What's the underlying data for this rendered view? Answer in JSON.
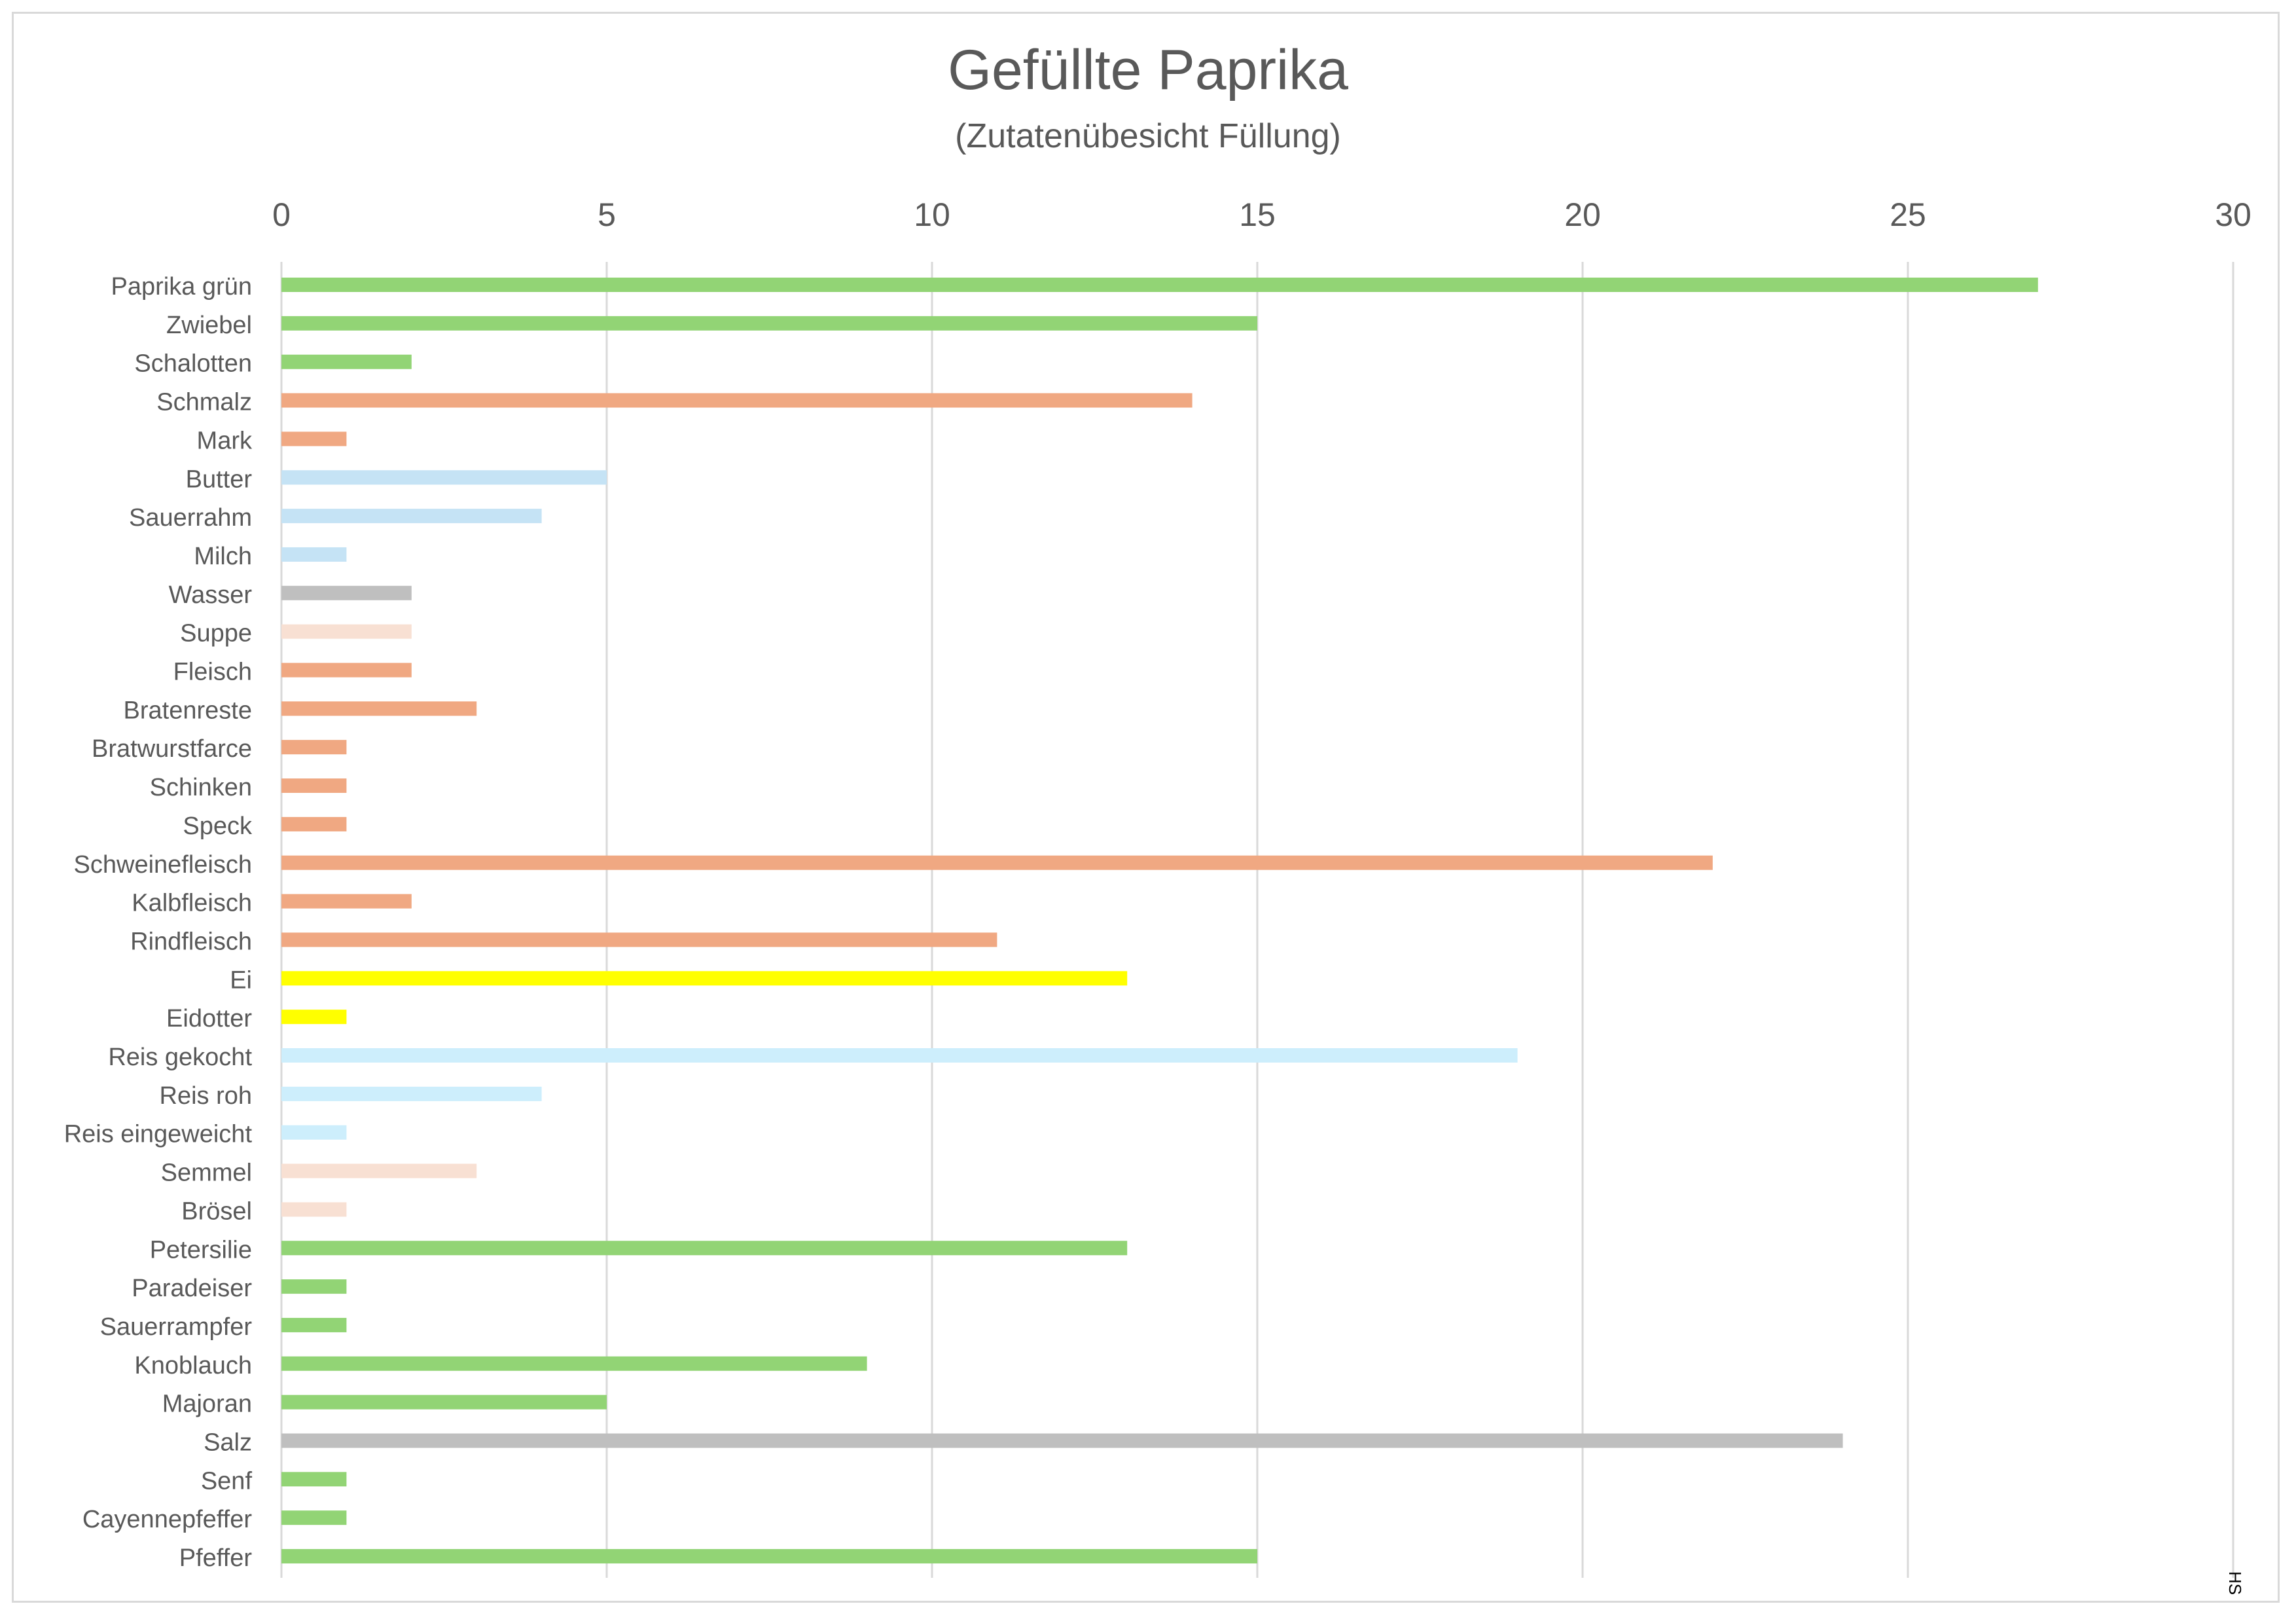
{
  "chart_data": {
    "type": "bar",
    "orientation": "horizontal",
    "title": "Gefüllte Paprika",
    "subtitle": "(Zutatenübesicht Füllung)",
    "xlim": [
      0,
      30
    ],
    "x_ticks": [
      0,
      5,
      10,
      15,
      20,
      25,
      30
    ],
    "x_axis_position": "top",
    "grid": true,
    "legend": "none",
    "categories": [
      "Paprika grün",
      "Zwiebel",
      "Schalotten",
      "Schmalz",
      "Mark",
      "Butter",
      "Sauerrahm",
      "Milch",
      "Wasser",
      "Suppe",
      "Fleisch",
      "Bratenreste",
      "Bratwurstfarce",
      "Schinken",
      "Speck",
      "Schweinefleisch",
      "Kalbfleisch",
      "Rindfleisch",
      "Ei",
      "Eidotter",
      "Reis gekocht",
      "Reis roh",
      "Reis eingeweicht",
      "Semmel",
      "Brösel",
      "Petersilie",
      "Paradeiser",
      "Sauerrampfer",
      "Knoblauch",
      "Majoran",
      "Salz",
      "Senf",
      "Cayennepfeffer",
      "Pfeffer"
    ],
    "values": [
      27,
      15,
      2,
      14,
      1,
      5,
      4,
      1,
      2,
      2,
      2,
      3,
      1,
      1,
      1,
      22,
      2,
      11,
      13,
      1,
      19,
      4,
      1,
      3,
      1,
      13,
      1,
      1,
      9,
      5,
      24,
      1,
      1,
      15
    ],
    "bar_colors": [
      "#92d475",
      "#92d475",
      "#92d475",
      "#f0a882",
      "#f0a882",
      "#c5e3f5",
      "#c5e3f5",
      "#c5e3f5",
      "#bfbfbf",
      "#f8e0d3",
      "#f0a882",
      "#f0a882",
      "#f0a882",
      "#f0a882",
      "#f0a882",
      "#f0a882",
      "#f0a882",
      "#f0a882",
      "#ffff00",
      "#ffff00",
      "#cdeefc",
      "#cdeefc",
      "#cdeefc",
      "#f8e0d3",
      "#f8e0d3",
      "#92d475",
      "#92d475",
      "#92d475",
      "#92d475",
      "#92d475",
      "#bfbfbf",
      "#92d475",
      "#92d475",
      "#92d475"
    ]
  },
  "signature": "HS",
  "colors": {
    "gridline": "#d9d9d9",
    "text": "#595959"
  }
}
